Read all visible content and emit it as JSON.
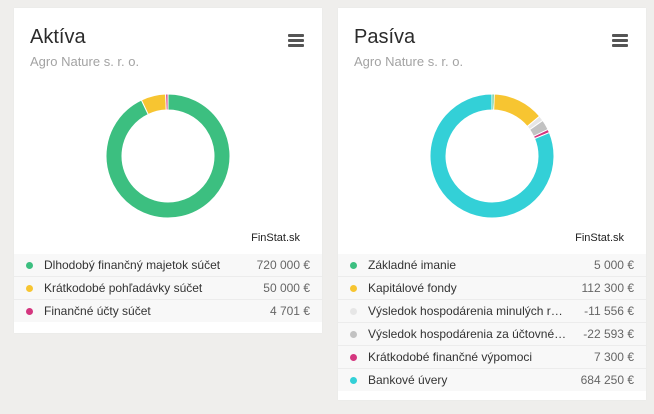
{
  "cards": [
    {
      "title": "Aktíva",
      "subtitle": "Agro Nature s. r. o.",
      "credit": "FinStat.sk",
      "items": [
        {
          "label": "Dlhodobý finančný majetok súčet",
          "value": "720 000 €",
          "color": "#3cbf80"
        },
        {
          "label": "Krátkodobé pohľadávky súčet",
          "value": "50 000 €",
          "color": "#f7c531"
        },
        {
          "label": "Finančné účty súčet",
          "value": "4 701 €",
          "color": "#d4367f"
        }
      ]
    },
    {
      "title": "Pasíva",
      "subtitle": "Agro Nature s. r. o.",
      "credit": "FinStat.sk",
      "items": [
        {
          "label": "Základné imanie",
          "value": "5 000 €",
          "color": "#3cbf80"
        },
        {
          "label": "Kapitálové fondy",
          "value": "112 300 €",
          "color": "#f7c531"
        },
        {
          "label": "Výsledok hospodárenia minulých rokov",
          "value": "-11 556 €",
          "color": "#e6e6e6"
        },
        {
          "label": "Výsledok hospodárenia za účtovné obdobie",
          "value": "-22 593 €",
          "color": "#c2c2c2"
        },
        {
          "label": "Krátkodobé finančné výpomoci",
          "value": "7 300 €",
          "color": "#d4367f"
        },
        {
          "label": "Bankové úvery",
          "value": "684 250 €",
          "color": "#33d0d7"
        }
      ]
    }
  ],
  "chart_data": [
    {
      "type": "pie",
      "title": "Aktíva",
      "categories": [
        "Dlhodobý finančný majetok súčet",
        "Krátkodobé pohľadávky súčet",
        "Finančné účty súčet"
      ],
      "values": [
        720000,
        50000,
        4701
      ]
    },
    {
      "type": "pie",
      "title": "Pasíva",
      "categories": [
        "Základné imanie",
        "Kapitálové fondy",
        "Výsledok hospodárenia minulých rokov",
        "Výsledok hospodárenia za účtovné obdobie",
        "Krátkodobé finančné výpomoci",
        "Bankové úvery"
      ],
      "values": [
        5000,
        112300,
        -11556,
        -22593,
        7300,
        684250
      ]
    }
  ]
}
